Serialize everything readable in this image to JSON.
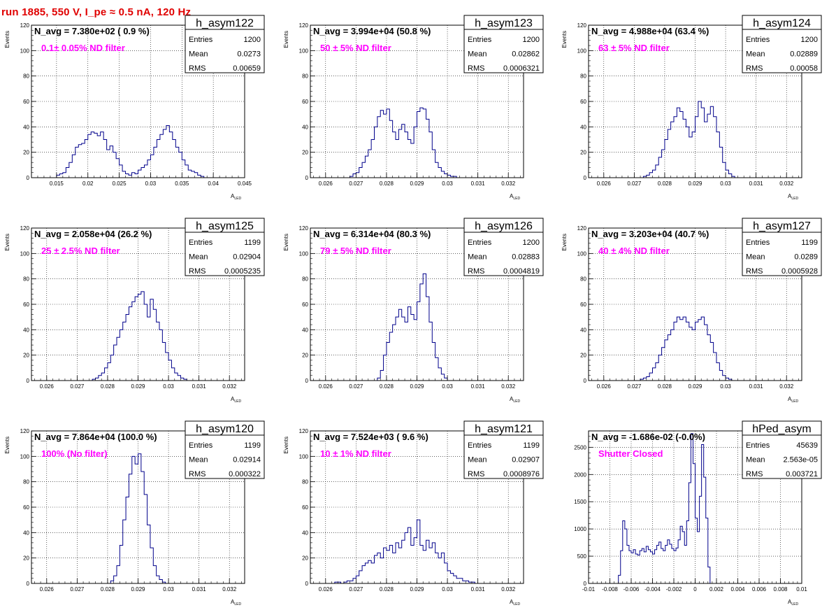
{
  "page_title": "run 1885,   550 V, I_pe ≈ 0.5 nA, 120 Hz",
  "colors": {
    "title": "#e00000",
    "histogram": "#00008b",
    "annotation": "#ff00ff"
  },
  "chart_data": [
    {
      "type": "bar",
      "name": "h_asym122",
      "navg": "N_avg = 7.380e+02 ( 0.9 %)",
      "filter": "0.1± 0.05% ND filter",
      "stats": {
        "entries": "1200",
        "mean": "0.0273",
        "rms": "0.00659"
      },
      "xlabel": "A",
      "xlabel_sub": "LED",
      "ylabel": "Events",
      "xlim": [
        0.011,
        0.045
      ],
      "ylim": [
        0,
        120
      ],
      "xticks": [
        0.015,
        0.02,
        0.025,
        0.03,
        0.035,
        0.04,
        0.045
      ],
      "xtick_labels": [
        "0.015",
        "0.02",
        "0.025",
        "0.03",
        "0.035",
        "0.04",
        "0.045"
      ],
      "yticks": [
        0,
        20,
        40,
        60,
        80,
        100,
        120
      ],
      "bins": {
        "start": 0.015,
        "width": 0.0005,
        "counts": [
          2,
          3,
          4,
          8,
          12,
          18,
          24,
          26,
          27,
          30,
          34,
          36,
          35,
          33,
          36,
          30,
          22,
          25,
          20,
          15,
          10,
          5,
          3,
          2,
          4,
          3,
          6,
          8,
          10,
          14,
          18,
          24,
          30,
          34,
          38,
          41,
          36,
          30,
          24,
          20,
          14,
          10,
          6,
          5,
          4,
          2,
          1
        ]
      },
      "grid": true
    },
    {
      "type": "bar",
      "name": "h_asym123",
      "navg": "N_avg = 3.994e+04 (50.8 %)",
      "filter": "50 ± 5% ND filter",
      "stats": {
        "entries": "1200",
        "mean": "0.02862",
        "rms": "0.0006321"
      },
      "xlabel": "A",
      "xlabel_sub": "LED",
      "ylabel": "Events",
      "xlim": [
        0.0255,
        0.0325
      ],
      "ylim": [
        0,
        120
      ],
      "xticks": [
        0.026,
        0.027,
        0.028,
        0.029,
        0.03,
        0.031,
        0.032
      ],
      "xtick_labels": [
        "0.026",
        "0.027",
        "0.028",
        "0.029",
        "0.03",
        "0.031",
        "0.032"
      ],
      "yticks": [
        0,
        20,
        40,
        60,
        80,
        100,
        120
      ],
      "bins": {
        "start": 0.0268,
        "width": 0.0001,
        "counts": [
          1,
          3,
          4,
          8,
          12,
          17,
          22,
          30,
          40,
          48,
          53,
          50,
          54,
          45,
          36,
          30,
          38,
          42,
          36,
          30,
          27,
          40,
          52,
          55,
          54,
          46,
          36,
          22,
          12,
          8,
          5,
          3,
          2,
          1,
          1
        ]
      },
      "grid": true
    },
    {
      "type": "bar",
      "name": "h_asym124",
      "navg": "N_avg = 4.988e+04 (63.4 %)",
      "filter": "63 ± 5% ND filter",
      "stats": {
        "entries": "1200",
        "mean": "0.02889",
        "rms": "0.00058"
      },
      "xlabel": "A",
      "xlabel_sub": "LED",
      "ylabel": "Events",
      "xlim": [
        0.0255,
        0.0325
      ],
      "ylim": [
        0,
        120
      ],
      "xticks": [
        0.026,
        0.027,
        0.028,
        0.029,
        0.03,
        0.031,
        0.032
      ],
      "xtick_labels": [
        "0.026",
        "0.027",
        "0.028",
        "0.029",
        "0.03",
        "0.031",
        "0.032"
      ],
      "yticks": [
        0,
        20,
        40,
        60,
        80,
        100,
        120
      ],
      "bins": {
        "start": 0.0273,
        "width": 0.0001,
        "counts": [
          1,
          2,
          4,
          6,
          10,
          16,
          22,
          30,
          38,
          44,
          48,
          55,
          52,
          46,
          40,
          32,
          36,
          48,
          60,
          55,
          44,
          50,
          56,
          48,
          36,
          24,
          12,
          6,
          3,
          1
        ]
      },
      "grid": true
    },
    {
      "type": "bar",
      "name": "h_asym125",
      "navg": "N_avg = 2.058e+04 (26.2 %)",
      "filter": "25 ± 2.5% ND filter",
      "stats": {
        "entries": "1199",
        "mean": "0.02904",
        "rms": "0.0005235"
      },
      "xlabel": "A",
      "xlabel_sub": "LED",
      "ylabel": "Events",
      "xlim": [
        0.0255,
        0.0325
      ],
      "ylim": [
        0,
        120
      ],
      "xticks": [
        0.026,
        0.027,
        0.028,
        0.029,
        0.03,
        0.031,
        0.032
      ],
      "xtick_labels": [
        "0.026",
        "0.027",
        "0.028",
        "0.029",
        "0.03",
        "0.031",
        "0.032"
      ],
      "yticks": [
        0,
        20,
        40,
        60,
        80,
        100,
        120
      ],
      "bins": {
        "start": 0.0275,
        "width": 0.0001,
        "counts": [
          1,
          2,
          4,
          6,
          10,
          14,
          20,
          28,
          34,
          40,
          46,
          52,
          58,
          62,
          66,
          68,
          70,
          60,
          50,
          64,
          56,
          46,
          40,
          30,
          22,
          16,
          10,
          6,
          4,
          2,
          1
        ]
      },
      "grid": true
    },
    {
      "type": "bar",
      "name": "h_asym126",
      "navg": "N_avg = 6.314e+04 (80.3 %)",
      "filter": "79 ± 5% ND filter",
      "stats": {
        "entries": "1200",
        "mean": "0.02883",
        "rms": "0.0004819"
      },
      "xlabel": "A",
      "xlabel_sub": "LED",
      "ylabel": "Events",
      "xlim": [
        0.0255,
        0.0325
      ],
      "ylim": [
        0,
        120
      ],
      "xticks": [
        0.026,
        0.027,
        0.028,
        0.029,
        0.03,
        0.031,
        0.032
      ],
      "xtick_labels": [
        "0.026",
        "0.027",
        "0.028",
        "0.029",
        "0.03",
        "0.031",
        "0.032"
      ],
      "yticks": [
        0,
        20,
        40,
        60,
        80,
        100,
        120
      ],
      "bins": {
        "start": 0.0277,
        "width": 0.0001,
        "counts": [
          2,
          8,
          20,
          30,
          38,
          44,
          50,
          56,
          50,
          46,
          58,
          52,
          48,
          62,
          76,
          84,
          66,
          46,
          30,
          18,
          10,
          5,
          2
        ]
      },
      "grid": true
    },
    {
      "type": "bar",
      "name": "h_asym127",
      "navg": "N_avg = 3.203e+04 (40.7 %)",
      "filter": "40 ± 4% ND filter",
      "stats": {
        "entries": "1199",
        "mean": "0.0289",
        "rms": "0.0005928"
      },
      "xlabel": "A",
      "xlabel_sub": "LED",
      "ylabel": "Events",
      "xlim": [
        0.0255,
        0.0325
      ],
      "ylim": [
        0,
        120
      ],
      "xticks": [
        0.026,
        0.027,
        0.028,
        0.029,
        0.03,
        0.031,
        0.032
      ],
      "xtick_labels": [
        "0.026",
        "0.027",
        "0.028",
        "0.029",
        "0.03",
        "0.031",
        "0.032"
      ],
      "yticks": [
        0,
        20,
        40,
        60,
        80,
        100,
        120
      ],
      "bins": {
        "start": 0.0272,
        "width": 0.0001,
        "counts": [
          1,
          2,
          3,
          6,
          10,
          14,
          20,
          26,
          32,
          36,
          40,
          46,
          50,
          48,
          50,
          46,
          42,
          40,
          46,
          48,
          50,
          44,
          36,
          30,
          22,
          14,
          8,
          4,
          2,
          1
        ]
      },
      "grid": true
    },
    {
      "type": "bar",
      "name": "h_asym120",
      "navg": "N_avg = 7.864e+04 (100.0 %)",
      "filter": "100% (No filter)",
      "stats": {
        "entries": "1199",
        "mean": "0.02914",
        "rms": "0.000322"
      },
      "xlabel": "A",
      "xlabel_sub": "LED",
      "ylabel": "Events",
      "xlim": [
        0.0255,
        0.0325
      ],
      "ylim": [
        0,
        120
      ],
      "xticks": [
        0.026,
        0.027,
        0.028,
        0.029,
        0.03,
        0.031,
        0.032
      ],
      "xtick_labels": [
        "0.026",
        "0.027",
        "0.028",
        "0.029",
        "0.03",
        "0.031",
        "0.032"
      ],
      "yticks": [
        0,
        20,
        40,
        60,
        80,
        100,
        120
      ],
      "bins": {
        "start": 0.0281,
        "width": 0.0001,
        "counts": [
          2,
          6,
          14,
          30,
          50,
          68,
          86,
          100,
          94,
          102,
          88,
          70,
          46,
          28,
          14,
          6,
          3,
          1
        ]
      },
      "grid": true
    },
    {
      "type": "bar",
      "name": "h_asym121",
      "navg": "N_avg = 7.524e+03 ( 9.6 %)",
      "filter": "10 ± 1% ND filter",
      "stats": {
        "entries": "1199",
        "mean": "0.02907",
        "rms": "0.0008976"
      },
      "xlabel": "A",
      "xlabel_sub": "LED",
      "ylabel": "Events",
      "xlim": [
        0.0255,
        0.0325
      ],
      "ylim": [
        0,
        120
      ],
      "xticks": [
        0.026,
        0.027,
        0.028,
        0.029,
        0.03,
        0.031,
        0.032
      ],
      "xtick_labels": [
        "0.026",
        "0.027",
        "0.028",
        "0.029",
        "0.03",
        "0.031",
        "0.032"
      ],
      "yticks": [
        0,
        20,
        40,
        60,
        80,
        100,
        120
      ],
      "bins": {
        "start": 0.0263,
        "width": 0.0001,
        "counts": [
          1,
          1,
          0,
          1,
          2,
          2,
          4,
          6,
          10,
          14,
          16,
          18,
          16,
          22,
          24,
          20,
          28,
          26,
          30,
          24,
          32,
          28,
          34,
          40,
          44,
          30,
          36,
          50,
          30,
          26,
          34,
          28,
          32,
          24,
          20,
          24,
          16,
          10,
          8,
          6,
          4,
          4,
          2,
          2,
          1,
          1
        ]
      },
      "grid": true
    },
    {
      "type": "bar",
      "name": "hPed_asym",
      "navg": "N_avg = -1.686e-02 (-0.0%)",
      "filter": "Shutter Closed",
      "stats": {
        "entries": "45639",
        "mean": "2.563e-05",
        "rms": "0.003721"
      },
      "xlabel": "A",
      "xlabel_sub": "LED",
      "ylabel": "",
      "xlim": [
        -0.01,
        0.01
      ],
      "ylim": [
        0,
        2800
      ],
      "xticks": [
        -0.01,
        -0.008,
        -0.006,
        -0.004,
        -0.002,
        0,
        0.002,
        0.004,
        0.006,
        0.008,
        0.01
      ],
      "xtick_labels": [
        "-0.01",
        "-0.008",
        "-0.006",
        "-0.004",
        "-0.002",
        "0",
        "0.002",
        "0.004",
        "0.006",
        "0.008",
        "0.01"
      ],
      "yticks": [
        0,
        500,
        1000,
        1500,
        2000,
        2500
      ],
      "bins": {
        "start": -0.0072,
        "width": 0.0002,
        "counts": [
          150,
          600,
          1150,
          1000,
          700,
          600,
          560,
          620,
          540,
          520,
          600,
          640,
          580,
          680,
          620,
          580,
          540,
          620,
          700,
          760,
          640,
          600,
          700,
          800,
          720,
          640,
          600,
          650,
          800,
          1050,
          950,
          700,
          1150,
          1850,
          2750,
          2200,
          1200,
          950,
          1600,
          2550,
          1950,
          1200,
          300
        ]
      },
      "grid": true
    }
  ]
}
